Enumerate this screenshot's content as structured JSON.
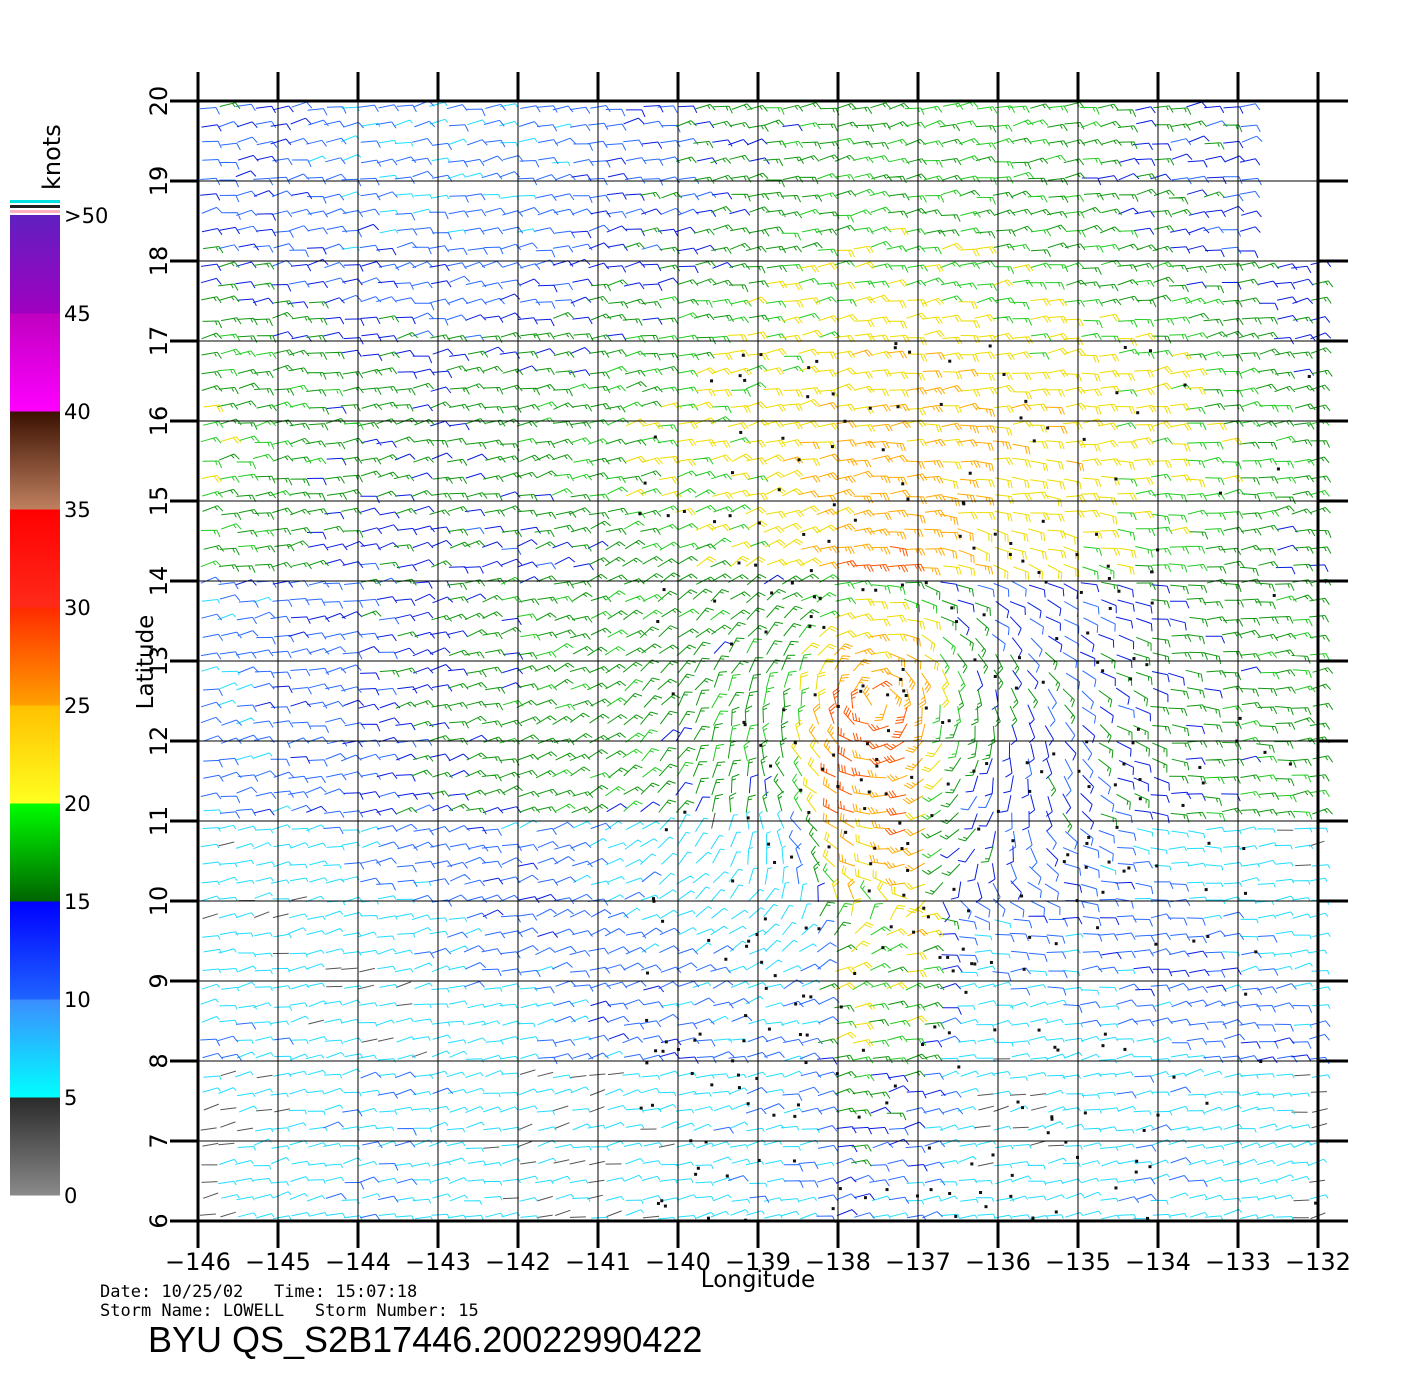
{
  "chart_data": {
    "type": "wind-barb-map",
    "xlabel": "Longitude",
    "ylabel": "Latitude",
    "xlim": [
      -146,
      -132
    ],
    "ylim": [
      6,
      20
    ],
    "x_ticks": [
      "−146",
      "−145",
      "−144",
      "−143",
      "−142",
      "−141",
      "−140",
      "−139",
      "−138",
      "−137",
      "−136",
      "−135",
      "−134",
      "−133",
      "−132"
    ],
    "y_ticks": [
      "6",
      "7",
      "8",
      "9",
      "10",
      "11",
      "12",
      "13",
      "14",
      "15",
      "16",
      "17",
      "18",
      "19",
      "20"
    ],
    "grid": true,
    "storm_center": {
      "lon": -137.5,
      "lat": 12.5
    },
    "colorbar": {
      "title": "knots",
      "labels": [
        "0",
        "5",
        "10",
        "15",
        "20",
        "25",
        "30",
        "35",
        "40",
        "45",
        ">50"
      ],
      "bands": [
        {
          "from": 0,
          "to": 5,
          "top": "#2a2a2a",
          "bottom": "#8a8a8a"
        },
        {
          "from": 5,
          "to": 10,
          "top": "#3c8cff",
          "bottom": "#00ffff"
        },
        {
          "from": 10,
          "to": 15,
          "top": "#0000ff",
          "bottom": "#1e64ff"
        },
        {
          "from": 15,
          "to": 20,
          "top": "#00ff00",
          "bottom": "#006400"
        },
        {
          "from": 20,
          "to": 25,
          "top": "#ffc000",
          "bottom": "#ffff20"
        },
        {
          "from": 25,
          "to": 30,
          "top": "#ff2a00",
          "bottom": "#ffa000"
        },
        {
          "from": 30,
          "to": 35,
          "top": "#ff0000",
          "bottom": "#ff2a1a"
        },
        {
          "from": 35,
          "to": 40,
          "top": "#3a1000",
          "bottom": "#c08060"
        },
        {
          "from": 40,
          "to": 45,
          "top": "#c000c0",
          "bottom": "#ff00ff"
        },
        {
          "from": 45,
          "to": 50,
          "top": "#6020c0",
          "bottom": "#a000c0"
        }
      ]
    }
  },
  "meta": {
    "date_line": "Date: 10/25/02   Time: 15:07:18",
    "storm_line": "Storm Name: LOWELL   Storm Number: 15",
    "product_id": "BYU QS_S2B17446.20022990422"
  }
}
